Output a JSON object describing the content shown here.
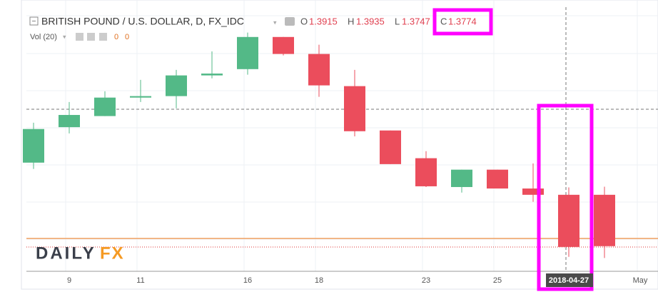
{
  "chart_data": {
    "type": "candlestick",
    "title": "BRITISH POUND / U.S. DOLLAR, D, FX_IDC",
    "legend": {
      "open_label": "O",
      "open": 1.3915,
      "high_label": "H",
      "high": 1.3935,
      "low_label": "L",
      "low": 1.3747,
      "close_label": "C",
      "close": 1.3774
    },
    "volume_label": "Vol (20)",
    "volume_values": [
      "0",
      "0"
    ],
    "logo": [
      "DAILY",
      "FX"
    ],
    "categories": [
      null,
      "9",
      null,
      "11",
      null,
      null,
      "16",
      null,
      "18",
      null,
      null,
      "23",
      null,
      "25",
      null,
      "2018-04-27",
      null,
      "May"
    ],
    "open": [
      1.4002,
      1.4098,
      1.4128,
      1.4178,
      1.4182,
      1.4238,
      1.4255,
      1.4342,
      1.4296,
      1.4209,
      1.4089,
      1.4014,
      1.3936,
      1.3983,
      1.3932,
      1.3915,
      1.3915,
      null
    ],
    "high": [
      1.411,
      1.4166,
      1.4195,
      1.4226,
      1.4253,
      1.4303,
      1.4354,
      1.4342,
      1.4321,
      1.4253,
      1.4089,
      1.4033,
      1.3983,
      1.3983,
      1.4,
      1.3935,
      1.3937,
      null
    ],
    "low": [
      1.3985,
      1.4081,
      1.4128,
      1.4166,
      1.4149,
      1.423,
      1.424,
      1.4292,
      1.418,
      1.4073,
      1.3998,
      1.3936,
      1.3921,
      1.3932,
      1.3896,
      1.3747,
      1.3744,
      null
    ],
    "close": [
      1.4093,
      1.4131,
      1.4178,
      1.4182,
      1.4238,
      1.4243,
      1.4342,
      1.4296,
      1.4211,
      1.4087,
      1.3998,
      1.3938,
      1.3983,
      1.3932,
      1.3915,
      1.3774,
      1.3776,
      null
    ],
    "up_color": "#53b987",
    "down_color": "#eb4d5c",
    "ylim": [
      1.3708,
      1.4415
    ]
  }
}
